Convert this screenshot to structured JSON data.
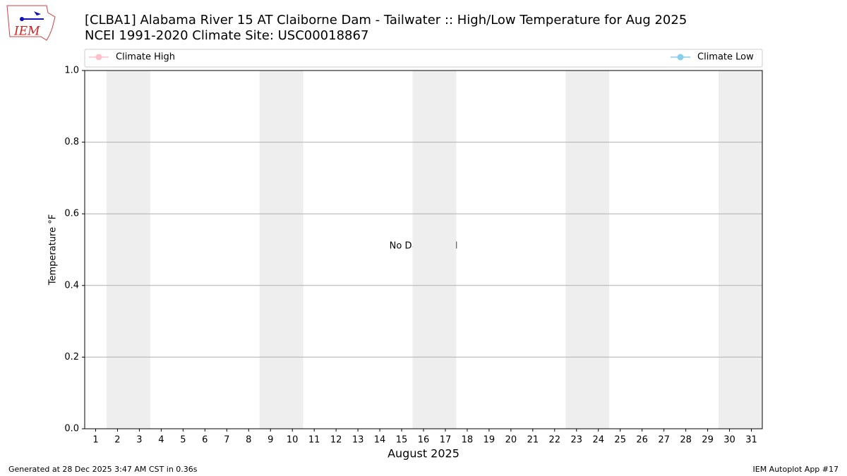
{
  "chart_data": {
    "type": "line",
    "logo_text": "IEM",
    "title": "[CLBA1] Alabama River 15 AT Claiborne Dam - Tailwater :: High/Low Temperature for Aug 2025",
    "subtitle": "NCEI 1991-2020 Climate Site: USC00018867",
    "x_label": "August 2025",
    "y_label": "Temperature °F",
    "annotation": "No Data Found",
    "x": [
      1,
      2,
      3,
      4,
      5,
      6,
      7,
      8,
      9,
      10,
      11,
      12,
      13,
      14,
      15,
      16,
      17,
      18,
      19,
      20,
      21,
      22,
      23,
      24,
      25,
      26,
      27,
      28,
      29,
      30,
      31
    ],
    "xlim": [
      0.5,
      31.5
    ],
    "xticks": [
      1,
      2,
      3,
      4,
      5,
      6,
      7,
      8,
      9,
      10,
      11,
      12,
      13,
      14,
      15,
      16,
      17,
      18,
      19,
      20,
      21,
      22,
      23,
      24,
      25,
      26,
      27,
      28,
      29,
      30,
      31
    ],
    "ylim": [
      0,
      1
    ],
    "yticks": [
      {
        "value": 0,
        "label": "0.0"
      },
      0.2,
      0.4,
      0.6,
      0.8,
      {
        "value": 1,
        "label": "1.0"
      }
    ],
    "grid": true,
    "weekend_spans": [
      [
        1.5,
        3.5
      ],
      [
        8.5,
        10.5
      ],
      [
        15.5,
        17.5
      ],
      [
        22.5,
        24.5
      ],
      [
        29.5,
        31.5
      ]
    ],
    "span_color": "#eeeeee",
    "series": [
      {
        "name": "Climate High",
        "color": "#ffc0cb",
        "values": [
          null,
          null,
          null,
          null,
          null,
          null,
          null,
          null,
          null,
          null,
          null,
          null,
          null,
          null,
          null,
          null,
          null,
          null,
          null,
          null,
          null,
          null,
          null,
          null,
          null,
          null,
          null,
          null,
          null,
          null,
          null
        ]
      },
      {
        "name": "Climate Low",
        "color": "#87ceeb",
        "values": [
          null,
          null,
          null,
          null,
          null,
          null,
          null,
          null,
          null,
          null,
          null,
          null,
          null,
          null,
          null,
          null,
          null,
          null,
          null,
          null,
          null,
          null,
          null,
          null,
          null,
          null,
          null,
          null,
          null,
          null,
          null
        ]
      }
    ],
    "footer_left": "Generated at 28 Dec 2025 3:47 AM CST in 0.36s",
    "footer_right": "IEM Autoplot App #17"
  }
}
